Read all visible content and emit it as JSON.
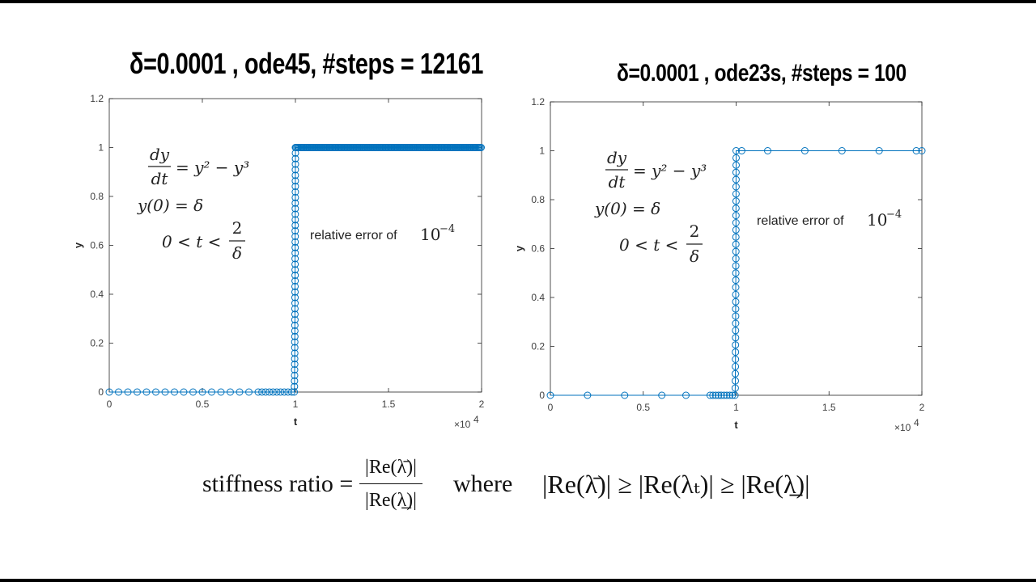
{
  "chart_data": [
    {
      "type": "scatter",
      "title": "δ=0.0001 , ode45, #steps = 12161",
      "xlabel": "t",
      "ylabel": "y",
      "x_exponent": "×10",
      "x_exponent_power": "4",
      "xlim": [
        0,
        20000
      ],
      "ylim": [
        0,
        1.2
      ],
      "xticks": [
        0,
        5000,
        10000,
        15000,
        20000
      ],
      "xtick_labels": [
        "0",
        "0.5",
        "1",
        "1.5",
        "2"
      ],
      "yticks": [
        0,
        0.2,
        0.4,
        0.6,
        0.8,
        1.0,
        1.2
      ],
      "ytick_labels": [
        "0",
        "0.2",
        "0.4",
        "0.6",
        "0.8",
        "1",
        "1.2"
      ],
      "grid": false,
      "series": [
        {
          "color": "#0072bd",
          "marker": "circle",
          "line": true,
          "x_sparse_low": [
            0,
            500,
            1000,
            1500,
            2000,
            2500,
            3000,
            3500,
            4000,
            4500,
            5000,
            5500,
            6000,
            6500,
            7000,
            7500,
            8000,
            8200,
            8400,
            8600,
            8800,
            9000,
            9200,
            9400,
            9600,
            9800
          ],
          "transition_t": 10000,
          "plateau_y": 1.0
        }
      ],
      "annotation_equation": {
        "lhs_num": "dy",
        "lhs_den": "dt",
        "rhs": "= y² − y³",
        "ic": "y(0) = δ",
        "range_left": "0 < t <",
        "range_num": "2",
        "range_den": "δ"
      },
      "annotation_error": {
        "text": "relative error of ",
        "base": "10",
        "power": "−4"
      }
    },
    {
      "type": "scatter",
      "title": "δ=0.0001 , ode23s, #steps = 100",
      "xlabel": "t",
      "ylabel": "y",
      "x_exponent": "×10",
      "x_exponent_power": "4",
      "xlim": [
        0,
        20000
      ],
      "ylim": [
        0,
        1.2
      ],
      "xticks": [
        0,
        5000,
        10000,
        15000,
        20000
      ],
      "xtick_labels": [
        "0",
        "0.5",
        "1",
        "1.5",
        "2"
      ],
      "yticks": [
        0,
        0.2,
        0.4,
        0.6,
        0.8,
        1.0,
        1.2
      ],
      "ytick_labels": [
        "0",
        "0.2",
        "0.4",
        "0.6",
        "0.8",
        "1",
        "1.2"
      ],
      "grid": false,
      "series": [
        {
          "color": "#0072bd",
          "marker": "circle",
          "line": true,
          "x_sparse_low": [
            0,
            2000,
            4000,
            6000,
            7300,
            8600,
            8750,
            8900,
            9050,
            9200,
            9350,
            9500,
            9650,
            9800
          ],
          "transition_t": 10000,
          "x_sparse_high": [
            10300,
            11700,
            13700,
            15700,
            17700,
            19700,
            20000
          ],
          "plateau_y": 1.0
        }
      ],
      "annotation_equation": {
        "lhs_num": "dy",
        "lhs_den": "dt",
        "rhs": "= y² − y³",
        "ic": "y(0) = δ",
        "range_left": "0 < t <",
        "range_num": "2",
        "range_den": "δ"
      },
      "annotation_error": {
        "text": "relative error of ",
        "base": "10",
        "power": "−4"
      }
    }
  ],
  "formula": {
    "lhs": "stiffness ratio =",
    "numerator": "|Re(λ̄)|",
    "denominator": "|Re(λ̲)|",
    "where": "where",
    "inequality": "|Re(λ̄)| ≥ |Re(λₜ)| ≥ |Re(λ̲)|"
  }
}
